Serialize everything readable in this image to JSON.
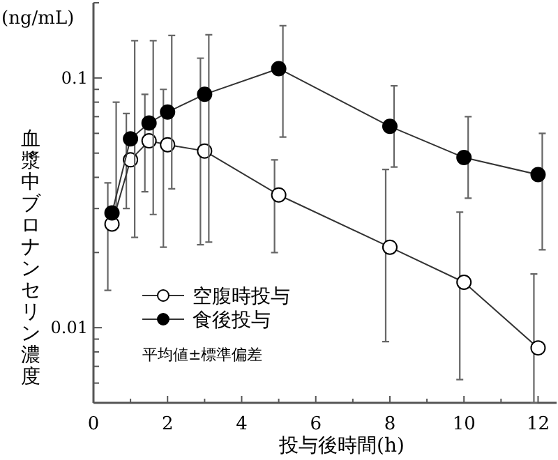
{
  "chart_data": {
    "type": "line",
    "xlabel": "投与後時間(h)",
    "ylabel": "血漿中ブロナンセリン濃度",
    "annotations": [
      "(ng/mL)",
      "平均値±標準偏差"
    ],
    "x": [
      0.5,
      1,
      1.5,
      2,
      3,
      5,
      8,
      10,
      12
    ],
    "series": [
      {
        "name": "空腹時投与",
        "color": "#ffffff",
        "values": [
          0.026,
          0.047,
          0.056,
          0.054,
          0.051,
          0.034,
          0.021,
          0.0152,
          0.0083
        ],
        "errors": [
          [
            0.0141,
            0.038
          ],
          [
            0.03,
            0.072
          ],
          [
            0.035,
            0.086
          ],
          [
            0.021,
            0.09
          ],
          [
            0.0215,
            0.12
          ],
          [
            0.02,
            0.047
          ],
          [
            0.0088,
            0.043
          ],
          [
            0.0062,
            0.029
          ],
          [
            0.005,
            0.0164
          ]
        ]
      },
      {
        "name": "食後投与",
        "color": "#000000",
        "values": [
          0.0288,
          0.057,
          0.066,
          0.073,
          0.086,
          0.109,
          0.064,
          0.048,
          0.041
        ],
        "errors": [
          [
            0.0288,
            0.08
          ],
          [
            0.023,
            0.141
          ],
          [
            0.0284,
            0.141
          ],
          [
            0.036,
            0.148
          ],
          [
            0.022,
            0.149
          ],
          [
            0.058,
            0.162
          ],
          [
            0.044,
            0.093
          ],
          [
            0.033,
            0.07
          ],
          [
            0.0205,
            0.06
          ]
        ]
      }
    ],
    "log": "y",
    "xlim": [
      0,
      12.5
    ],
    "ylim": [
      0.005,
      0.2
    ],
    "xticks": [
      0,
      {
        "value": 1,
        "label": null
      },
      2,
      {
        "value": 3,
        "label": null
      },
      4,
      {
        "value": 5,
        "label": null
      },
      6,
      {
        "value": 7,
        "label": null
      },
      8,
      {
        "value": 9,
        "label": null
      },
      10,
      {
        "value": 11,
        "label": null
      },
      12
    ],
    "yticks": [
      {
        "value": 0.005,
        "label": null
      },
      {
        "value": 0.006,
        "label": null
      },
      {
        "value": 0.007,
        "label": null
      },
      {
        "value": 0.008,
        "label": null
      },
      {
        "value": 0.009,
        "label": null
      },
      0.01,
      {
        "value": 0.02,
        "label": null
      },
      {
        "value": 0.03,
        "label": null
      },
      {
        "value": 0.04,
        "label": null
      },
      {
        "value": 0.05,
        "label": null
      },
      {
        "value": 0.06,
        "label": null
      },
      {
        "value": 0.07,
        "label": null
      },
      {
        "value": 0.08,
        "label": null
      },
      {
        "value": 0.09,
        "label": null
      },
      0.1,
      {
        "value": 0.2,
        "label": null
      }
    ],
    "grid": false,
    "legend": "bottom left",
    "marker": "circle",
    "line_style": "solid"
  }
}
